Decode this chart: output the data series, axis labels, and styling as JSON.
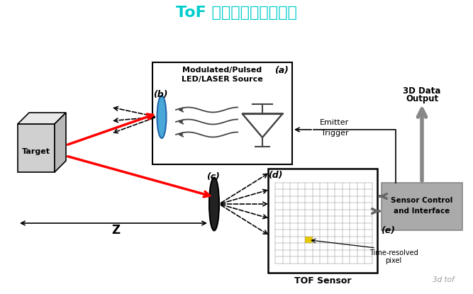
{
  "title": "ToF 模组工作原理示意图",
  "title_color": "#00CCCC",
  "title_fontsize": 16,
  "bg_color": "#FFFFFF",
  "fig_width": 6.67,
  "fig_height": 4.15,
  "dpi": 100,
  "cube_label": "Target",
  "box_top_label1": "Modulated/Pulsed",
  "box_top_label2": "LED/LASER Source",
  "label_a": "(a)",
  "label_b": "(b)",
  "label_c": "(c)",
  "label_d": "(d)",
  "label_e": "(e)",
  "emitter_trigger": "Emitter\nTrigger",
  "data_output1": "3D Data",
  "data_output2": "Output",
  "sensor_control1": "Sensor Control",
  "sensor_control2": "and Interface",
  "tof_label": "TOF Sensor",
  "time_pixel1": "Time-resolved",
  "time_pixel2": "pixel",
  "watermark": "3d tof",
  "z_label": "Z"
}
